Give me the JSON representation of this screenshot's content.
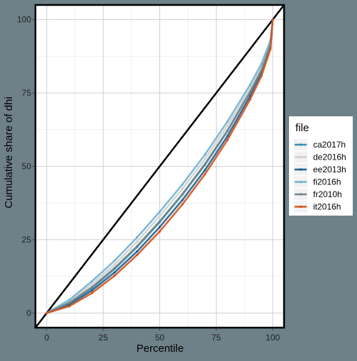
{
  "chart_data": {
    "type": "line",
    "title": "",
    "xlabel": "Percentile",
    "ylabel": "Cumulative share of dhi",
    "xlim": [
      -5,
      105
    ],
    "ylim": [
      -5,
      105
    ],
    "x_ticks": [
      0,
      25,
      50,
      75,
      100
    ],
    "y_ticks": [
      0,
      25,
      50,
      75,
      100
    ],
    "grid": true,
    "legend": {
      "title": "file",
      "position": "right"
    },
    "reference_line": {
      "name": "",
      "x": [
        -5,
        105
      ],
      "y": [
        -5,
        105
      ],
      "color": "#000000"
    },
    "x": [
      0,
      10,
      20,
      30,
      40,
      50,
      60,
      70,
      80,
      90,
      95,
      99,
      100
    ],
    "series": [
      {
        "name": "ca2017h",
        "color": "#3a8fb0",
        "values": [
          0,
          3.3,
          8.5,
          15.0,
          22.5,
          31.0,
          40.3,
          50.5,
          62.0,
          75.5,
          83.0,
          91.5,
          100
        ]
      },
      {
        "name": "de2016h",
        "color": "#cfcfcf",
        "values": [
          0,
          4.0,
          9.8,
          16.5,
          24.3,
          33.0,
          42.3,
          52.5,
          63.8,
          76.5,
          83.8,
          92.3,
          100
        ]
      },
      {
        "name": "ee2013h",
        "color": "#1f5f8f",
        "values": [
          0,
          2.8,
          7.7,
          13.8,
          21.0,
          29.3,
          38.5,
          48.7,
          60.3,
          74.0,
          81.8,
          90.8,
          100
        ]
      },
      {
        "name": "fi2016h",
        "color": "#72b2d0",
        "values": [
          0,
          4.5,
          10.8,
          17.8,
          25.8,
          34.5,
          43.8,
          54.0,
          65.3,
          77.8,
          85.0,
          93.0,
          100
        ]
      },
      {
        "name": "fr2010h",
        "color": "#708589",
        "values": [
          0,
          3.5,
          8.8,
          15.3,
          22.8,
          31.3,
          40.5,
          50.8,
          62.2,
          75.3,
          82.8,
          91.5,
          100
        ]
      },
      {
        "name": "it2016h",
        "color": "#d4541e",
        "values": [
          0,
          2.3,
          6.8,
          12.7,
          19.8,
          27.8,
          37.0,
          47.3,
          59.0,
          72.8,
          80.8,
          90.0,
          100
        ]
      }
    ]
  }
}
